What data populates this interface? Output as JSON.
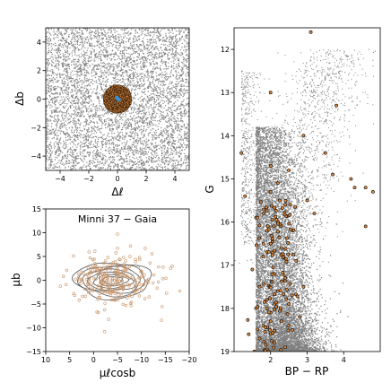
{
  "chart_data": [
    {
      "id": "sky",
      "type": "scatter",
      "xlabel": "Δℓ",
      "ylabel": "Δb",
      "xlim": [
        -5,
        5
      ],
      "ylim": [
        -5,
        5
      ],
      "xticks": [
        -4,
        -2,
        0,
        2,
        4
      ],
      "yticks": [
        -4,
        -2,
        0,
        2,
        4
      ],
      "field_color": "#808080",
      "members_color": "#e08a3c",
      "members_edge": "#000000",
      "center_color": "#3a8fd0",
      "cluster_center": [
        0,
        0
      ],
      "cluster_radius": 1.0,
      "series": [
        {
          "role": "field",
          "points": [
            [
              -4.1,
              3.8
            ],
            [
              -2.7,
              1.2
            ],
            [
              3.3,
              -2.9
            ],
            [
              1.5,
              4.2
            ],
            [
              -0.8,
              -3.6
            ],
            [
              4.4,
              0.7
            ],
            [
              -3.9,
              -4.3
            ],
            [
              2.6,
              2.1
            ]
          ]
        },
        {
          "role": "members",
          "points": [
            [
              0.2,
              0.3
            ],
            [
              -0.4,
              -0.2
            ],
            [
              0.5,
              -0.5
            ],
            [
              -0.6,
              0.5
            ],
            [
              0.1,
              -0.8
            ],
            [
              0.7,
              0.2
            ]
          ]
        },
        {
          "role": "center",
          "points": [
            [
              0.0,
              0.05
            ],
            [
              0.1,
              -0.05
            ],
            [
              -0.05,
              0.1
            ]
          ]
        }
      ]
    },
    {
      "id": "pm",
      "type": "scatter",
      "title": "Minni 37  −  Gaia",
      "xlabel": "μℓcosb",
      "ylabel": "μb",
      "xlim": [
        10,
        -20
      ],
      "ylim": [
        -15,
        15
      ],
      "xticks": [
        10,
        5,
        0,
        -5,
        -10,
        -15,
        -20
      ],
      "yticks": [
        -15,
        -10,
        -5,
        0,
        5,
        10,
        15
      ],
      "points_color": "#c8956a",
      "contour_color": "#555555",
      "contour_center": [
        -4,
        0
      ],
      "contour_radii": [
        [
          8.0,
          3.8
        ],
        [
          7.0,
          3.2
        ],
        [
          6.0,
          2.7
        ],
        [
          5.0,
          2.2
        ],
        [
          4.0,
          1.7
        ],
        [
          3.0,
          1.2
        ],
        [
          2.0,
          0.8
        ]
      ],
      "points": [
        [
          -4.0,
          0.3
        ],
        [
          -6.1,
          2.0
        ],
        [
          -1.7,
          -1.9
        ],
        [
          -8.8,
          3.9
        ],
        [
          3.0,
          -4.2
        ],
        [
          -12.6,
          1.1
        ],
        [
          -5.0,
          9.7
        ],
        [
          -1.0,
          -6.8
        ],
        [
          -14.2,
          -8.4
        ],
        [
          4.2,
          5.1
        ],
        [
          -9.6,
          -3.3
        ],
        [
          -3.0,
          4.8
        ],
        [
          -7.5,
          -0.9
        ],
        [
          0.4,
          1.6
        ],
        [
          -10.8,
          6.7
        ],
        [
          -6.8,
          -5.3
        ],
        [
          6.3,
          0.8
        ],
        [
          -2.3,
          -10.8
        ],
        [
          -16.1,
          2.5
        ],
        [
          -4.6,
          -2.4
        ]
      ]
    },
    {
      "id": "cmd",
      "type": "scatter",
      "xlabel": "BP − RP",
      "ylabel": "G",
      "xlim": [
        1.0,
        5.0
      ],
      "ylim": [
        19,
        11.5
      ],
      "xticks": [
        2,
        3,
        4
      ],
      "yticks": [
        12,
        13,
        14,
        15,
        16,
        17,
        18,
        19
      ],
      "field_color": "#808080",
      "members_color": "#e08a3c",
      "members_edge": "#000000",
      "field_density_region": {
        "blue_edge_bp_rp": 1.6,
        "turnoff_g": 14.0
      },
      "members": [
        [
          3.1,
          11.6
        ],
        [
          2.0,
          13.0
        ],
        [
          3.8,
          13.3
        ],
        [
          2.9,
          14.0
        ],
        [
          1.2,
          14.4
        ],
        [
          3.5,
          14.4
        ],
        [
          2.0,
          14.7
        ],
        [
          2.5,
          14.8
        ],
        [
          3.7,
          14.9
        ],
        [
          4.2,
          15.0
        ],
        [
          4.3,
          15.2
        ],
        [
          4.6,
          15.2
        ],
        [
          4.8,
          15.3
        ],
        [
          2.0,
          15.3
        ],
        [
          3.0,
          15.5
        ],
        [
          2.4,
          15.6
        ],
        [
          3.2,
          15.8
        ],
        [
          1.6,
          15.9
        ],
        [
          2.2,
          16.0
        ],
        [
          4.6,
          16.1
        ],
        [
          1.9,
          16.2
        ],
        [
          2.6,
          16.2
        ],
        [
          2.0,
          16.5
        ],
        [
          2.3,
          16.6
        ],
        [
          1.8,
          16.8
        ],
        [
          2.7,
          16.9
        ],
        [
          1.5,
          17.1
        ],
        [
          2.1,
          17.2
        ],
        [
          2.4,
          17.3
        ],
        [
          1.7,
          17.5
        ],
        [
          2.2,
          17.6
        ],
        [
          1.9,
          17.8
        ],
        [
          2.5,
          17.9
        ],
        [
          1.6,
          18.0
        ],
        [
          2.0,
          18.1
        ],
        [
          2.3,
          18.3
        ],
        [
          1.8,
          18.4
        ],
        [
          2.6,
          18.5
        ],
        [
          1.7,
          18.7
        ],
        [
          2.1,
          18.8
        ],
        [
          2.4,
          18.9
        ],
        [
          1.9,
          18.95
        ],
        [
          2.8,
          18.2
        ],
        [
          2.9,
          17.5
        ],
        [
          1.4,
          18.6
        ],
        [
          1.3,
          15.4
        ],
        [
          2.2,
          15.1
        ],
        [
          1.9,
          16.7
        ]
      ]
    }
  ]
}
